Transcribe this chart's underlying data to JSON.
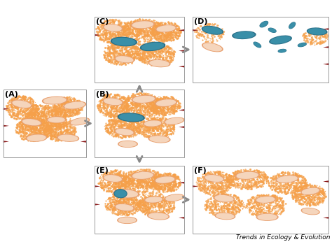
{
  "background": "#ffffff",
  "orange_sand": "#F5A04A",
  "bacterium_peach_fill": "#F5D5BC",
  "bacterium_peach_edge": "#E8A070",
  "bacterium_blue_fill": "#3A8FA8",
  "bacterium_blue_edge": "#2A6F88",
  "red_color": "#8B1A1A",
  "gray_arrow": "#888888",
  "label_fontsize": 8,
  "brand_text": "Trends in Ecology & Evolution",
  "brand_fontsize": 6.5,
  "panel_edge": "#999999",
  "panels": {
    "A": [
      0.01,
      0.35,
      0.25,
      0.28
    ],
    "B": [
      0.285,
      0.35,
      0.27,
      0.28
    ],
    "C": [
      0.285,
      0.66,
      0.27,
      0.27
    ],
    "D": [
      0.58,
      0.66,
      0.41,
      0.27
    ],
    "E": [
      0.285,
      0.035,
      0.27,
      0.28
    ],
    "F": [
      0.58,
      0.035,
      0.41,
      0.28
    ]
  }
}
